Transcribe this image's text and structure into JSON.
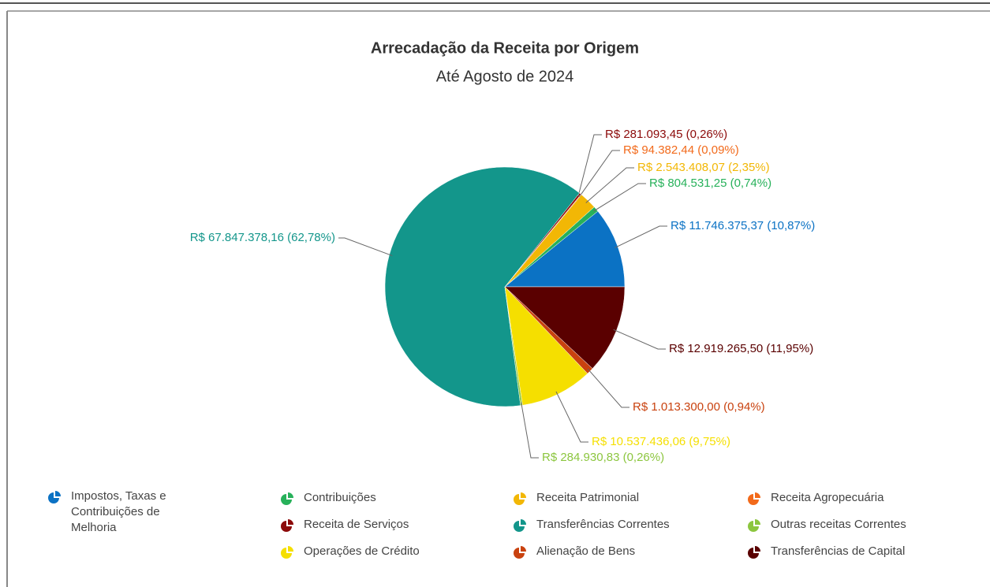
{
  "chart_data": {
    "type": "pie",
    "title": "Arrecadação da Receita por Origem",
    "subtitle": "Até Agosto de 2024",
    "categories": [
      "Impostos, Taxas e Contribuições de Melhoria",
      "Contribuições",
      "Receita Patrimonial",
      "Receita Agropecuária",
      "Receita de Serviços",
      "Transferências Correntes",
      "Outras receitas Correntes",
      "Operações de Crédito",
      "Alienação de Bens",
      "Transferências de Capital"
    ],
    "values": [
      11746375.37,
      804531.25,
      2543408.07,
      94382.44,
      281093.45,
      67847378.16,
      284930.83,
      10537436.06,
      1013300.0,
      12919265.5
    ],
    "value_labels": [
      "R$ 11.746.375,37 (10,87%)",
      "R$ 804.531,25 (0,74%)",
      "R$ 2.543.408,07 (2,35%)",
      "R$ 94.382,44 (0,09%)",
      "R$ 281.093,45 (0,26%)",
      "R$ 67.847.378,16 (62,78%)",
      "R$ 284.930,83 (0,26%)",
      "R$ 10.537.436,06 (9,75%)",
      "R$ 1.013.300,00 (0,94%)",
      "R$ 12.919.265,50 (11,95%)"
    ],
    "colors": [
      "#0b72c4",
      "#27b15a",
      "#f2b705",
      "#f26a1b",
      "#8c0a0a",
      "#13968b",
      "#8cc63f",
      "#f5df00",
      "#c9420f",
      "#5a0000"
    ]
  }
}
